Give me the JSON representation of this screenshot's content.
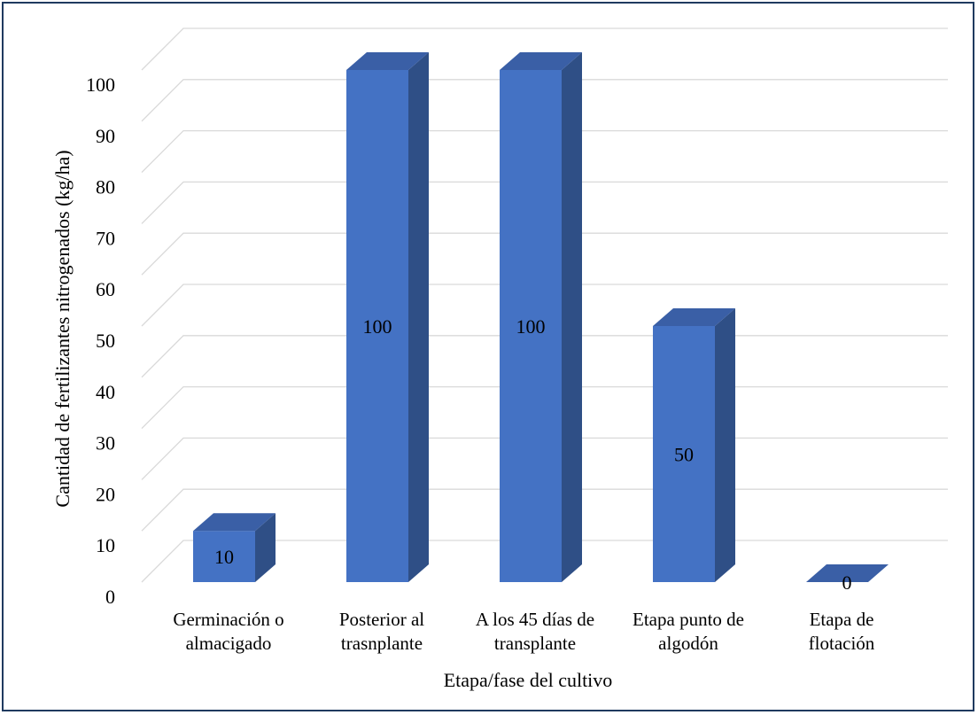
{
  "chart_data": {
    "type": "bar",
    "style": "3d-column",
    "title": "",
    "xlabel": "Etapa/fase del cultivo",
    "ylabel": "Cantidad de fertilizantes nitrogenados (kg/ha)",
    "categories": [
      [
        "Germinación o",
        "almacigado"
      ],
      [
        "Posterior al",
        "trasnplante"
      ],
      [
        "A los 45 días de",
        "transplante"
      ],
      [
        "Etapa punto de",
        "algodón"
      ],
      [
        "Etapa de",
        "flotación"
      ]
    ],
    "values": [
      10,
      100,
      100,
      50,
      0
    ],
    "data_labels": [
      "10",
      "100",
      "100",
      "50",
      "0"
    ],
    "ylim": [
      0,
      100
    ],
    "yticks": [
      0,
      10,
      20,
      30,
      40,
      50,
      60,
      70,
      80,
      90,
      100
    ],
    "grid": true,
    "legend": "none",
    "colors": {
      "bar_front": "#4472c4",
      "bar_side": "#2f4f86",
      "bar_top": "#3a5fa6",
      "gridline": "#d9d9d9",
      "border": "#1f3a5f"
    }
  }
}
